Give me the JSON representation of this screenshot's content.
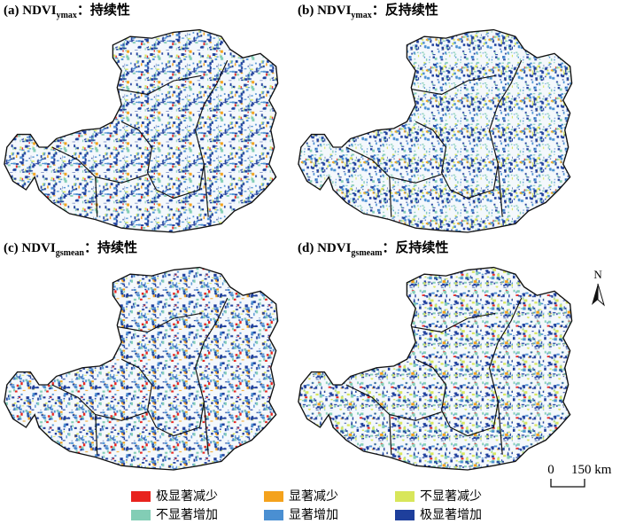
{
  "panels": [
    {
      "prefix": "(a) NDVI",
      "subscript": "ymax",
      "suffix": "：持续性"
    },
    {
      "prefix": "(b) NDVI",
      "subscript": "ymax",
      "suffix": "：反持续性"
    },
    {
      "prefix": "(c) NDVI",
      "subscript": "gsmean",
      "suffix": "：持续性"
    },
    {
      "prefix": "(d) NDVI",
      "subscript": "gsmeam",
      "suffix": "：反持续性"
    }
  ],
  "legend": [
    {
      "label": "极显著减少",
      "color": "#e8231e"
    },
    {
      "label": "显著减少",
      "color": "#f4a21c"
    },
    {
      "label": "不显著减少",
      "color": "#d8e65a"
    },
    {
      "label": "不显著增加",
      "color": "#82cdb5"
    },
    {
      "label": "显著增加",
      "color": "#4a8fd2"
    },
    {
      "label": "极显著增加",
      "color": "#1e3f9c"
    }
  ],
  "scale_bar": {
    "start": "0",
    "end": "150 km"
  },
  "north": "N"
}
